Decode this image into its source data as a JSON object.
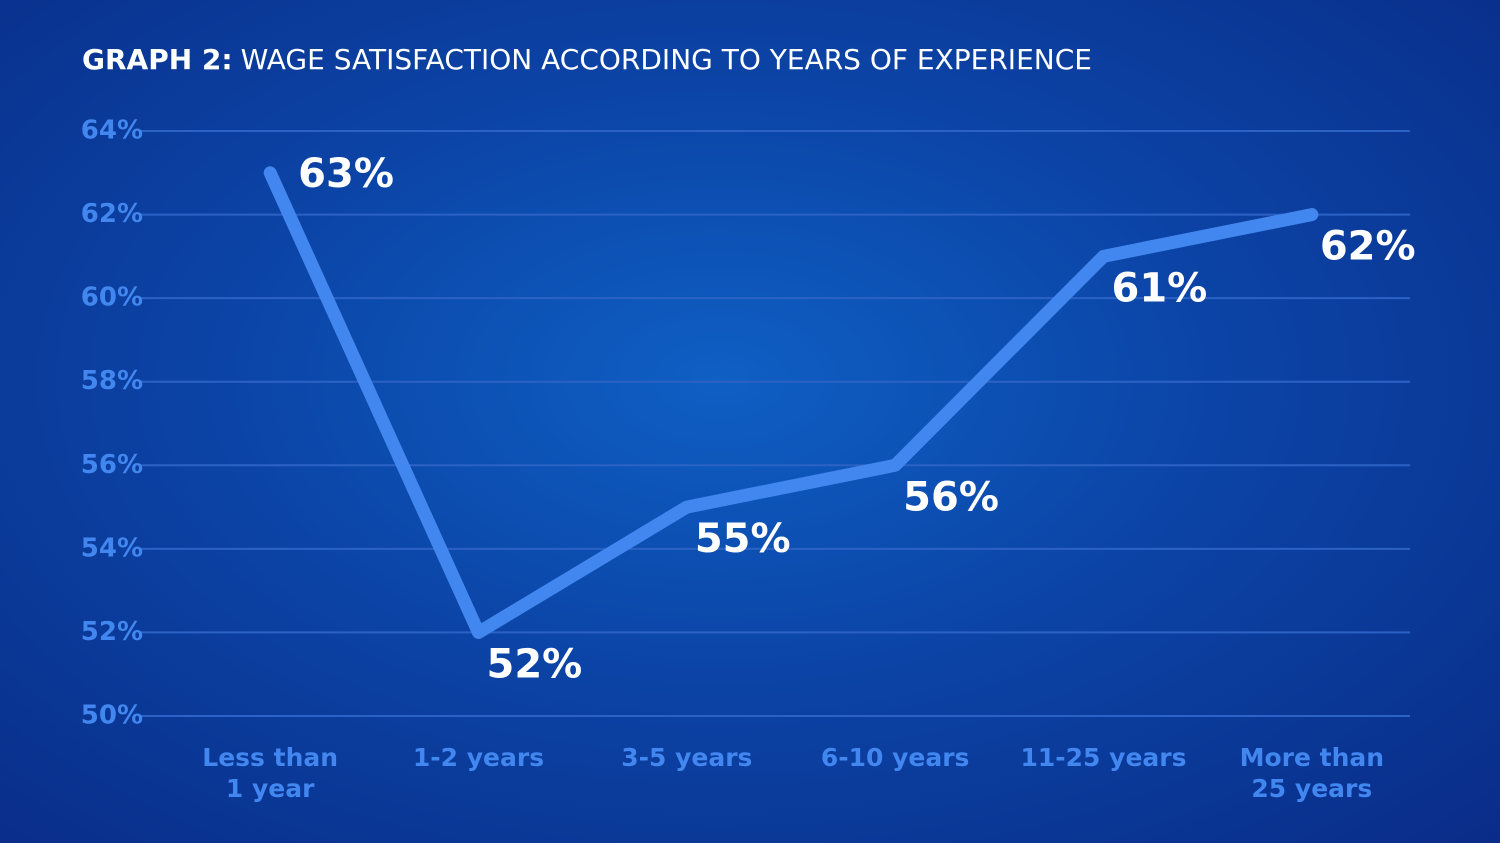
{
  "chart_data": {
    "type": "line",
    "title_prefix": "GRAPH 2:",
    "title": "WAGE SATISFACTION ACCORDING TO YEARS OF EXPERIENCE",
    "categories": [
      "Less than\n1 year",
      "1-2 years",
      "3-5 years",
      "6-10 years",
      "11-25 years",
      "More than\n25 years"
    ],
    "series": [
      {
        "color": "#4287ef",
        "values": [
          63,
          52,
          55,
          56,
          61,
          62
        ],
        "value_labels": [
          "63%",
          "52%",
          "55%",
          "56%",
          "61%",
          "62%"
        ]
      }
    ],
    "ylim": [
      50,
      64
    ],
    "yticks": [
      {
        "value": 50,
        "label": "50%"
      },
      {
        "value": 52,
        "label": "52%"
      },
      {
        "value": 54,
        "label": "54%"
      },
      {
        "value": 56,
        "label": "56%"
      },
      {
        "value": 58,
        "label": "58%"
      },
      {
        "value": 60,
        "label": "60%"
      },
      {
        "value": 62,
        "label": "62%"
      },
      {
        "value": 64,
        "label": "64%"
      }
    ],
    "grid": true
  }
}
